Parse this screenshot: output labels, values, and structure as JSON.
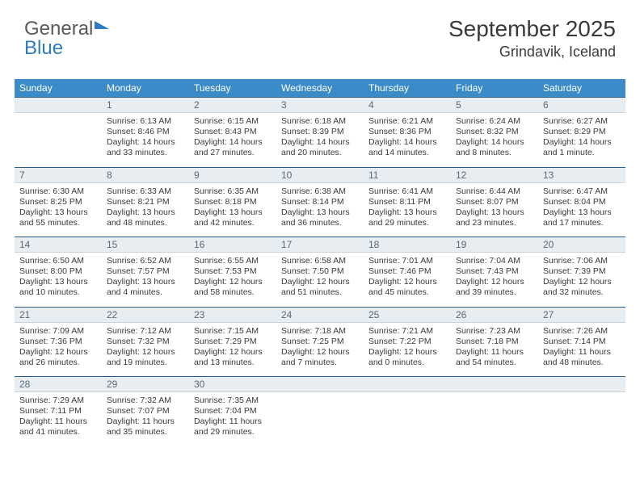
{
  "brand": {
    "part1": "General",
    "part2": "Blue"
  },
  "title": "September 2025",
  "location": "Grindavik, Iceland",
  "colors": {
    "header_bg": "#3b8bc8",
    "header_text": "#ffffff",
    "daynum_bg": "#e7edf1",
    "daynum_border_top": "#2b5f86",
    "body_text": "#3a3a3a",
    "page_bg": "#ffffff"
  },
  "dow": [
    "Sunday",
    "Monday",
    "Tuesday",
    "Wednesday",
    "Thursday",
    "Friday",
    "Saturday"
  ],
  "weeks": [
    [
      {
        "n": "",
        "l1": "",
        "l2": "",
        "l3": "",
        "l4": ""
      },
      {
        "n": "1",
        "l1": "Sunrise: 6:13 AM",
        "l2": "Sunset: 8:46 PM",
        "l3": "Daylight: 14 hours",
        "l4": "and 33 minutes."
      },
      {
        "n": "2",
        "l1": "Sunrise: 6:15 AM",
        "l2": "Sunset: 8:43 PM",
        "l3": "Daylight: 14 hours",
        "l4": "and 27 minutes."
      },
      {
        "n": "3",
        "l1": "Sunrise: 6:18 AM",
        "l2": "Sunset: 8:39 PM",
        "l3": "Daylight: 14 hours",
        "l4": "and 20 minutes."
      },
      {
        "n": "4",
        "l1": "Sunrise: 6:21 AM",
        "l2": "Sunset: 8:36 PM",
        "l3": "Daylight: 14 hours",
        "l4": "and 14 minutes."
      },
      {
        "n": "5",
        "l1": "Sunrise: 6:24 AM",
        "l2": "Sunset: 8:32 PM",
        "l3": "Daylight: 14 hours",
        "l4": "and 8 minutes."
      },
      {
        "n": "6",
        "l1": "Sunrise: 6:27 AM",
        "l2": "Sunset: 8:29 PM",
        "l3": "Daylight: 14 hours",
        "l4": "and 1 minute."
      }
    ],
    [
      {
        "n": "7",
        "l1": "Sunrise: 6:30 AM",
        "l2": "Sunset: 8:25 PM",
        "l3": "Daylight: 13 hours",
        "l4": "and 55 minutes."
      },
      {
        "n": "8",
        "l1": "Sunrise: 6:33 AM",
        "l2": "Sunset: 8:21 PM",
        "l3": "Daylight: 13 hours",
        "l4": "and 48 minutes."
      },
      {
        "n": "9",
        "l1": "Sunrise: 6:35 AM",
        "l2": "Sunset: 8:18 PM",
        "l3": "Daylight: 13 hours",
        "l4": "and 42 minutes."
      },
      {
        "n": "10",
        "l1": "Sunrise: 6:38 AM",
        "l2": "Sunset: 8:14 PM",
        "l3": "Daylight: 13 hours",
        "l4": "and 36 minutes."
      },
      {
        "n": "11",
        "l1": "Sunrise: 6:41 AM",
        "l2": "Sunset: 8:11 PM",
        "l3": "Daylight: 13 hours",
        "l4": "and 29 minutes."
      },
      {
        "n": "12",
        "l1": "Sunrise: 6:44 AM",
        "l2": "Sunset: 8:07 PM",
        "l3": "Daylight: 13 hours",
        "l4": "and 23 minutes."
      },
      {
        "n": "13",
        "l1": "Sunrise: 6:47 AM",
        "l2": "Sunset: 8:04 PM",
        "l3": "Daylight: 13 hours",
        "l4": "and 17 minutes."
      }
    ],
    [
      {
        "n": "14",
        "l1": "Sunrise: 6:50 AM",
        "l2": "Sunset: 8:00 PM",
        "l3": "Daylight: 13 hours",
        "l4": "and 10 minutes."
      },
      {
        "n": "15",
        "l1": "Sunrise: 6:52 AM",
        "l2": "Sunset: 7:57 PM",
        "l3": "Daylight: 13 hours",
        "l4": "and 4 minutes."
      },
      {
        "n": "16",
        "l1": "Sunrise: 6:55 AM",
        "l2": "Sunset: 7:53 PM",
        "l3": "Daylight: 12 hours",
        "l4": "and 58 minutes."
      },
      {
        "n": "17",
        "l1": "Sunrise: 6:58 AM",
        "l2": "Sunset: 7:50 PM",
        "l3": "Daylight: 12 hours",
        "l4": "and 51 minutes."
      },
      {
        "n": "18",
        "l1": "Sunrise: 7:01 AM",
        "l2": "Sunset: 7:46 PM",
        "l3": "Daylight: 12 hours",
        "l4": "and 45 minutes."
      },
      {
        "n": "19",
        "l1": "Sunrise: 7:04 AM",
        "l2": "Sunset: 7:43 PM",
        "l3": "Daylight: 12 hours",
        "l4": "and 39 minutes."
      },
      {
        "n": "20",
        "l1": "Sunrise: 7:06 AM",
        "l2": "Sunset: 7:39 PM",
        "l3": "Daylight: 12 hours",
        "l4": "and 32 minutes."
      }
    ],
    [
      {
        "n": "21",
        "l1": "Sunrise: 7:09 AM",
        "l2": "Sunset: 7:36 PM",
        "l3": "Daylight: 12 hours",
        "l4": "and 26 minutes."
      },
      {
        "n": "22",
        "l1": "Sunrise: 7:12 AM",
        "l2": "Sunset: 7:32 PM",
        "l3": "Daylight: 12 hours",
        "l4": "and 19 minutes."
      },
      {
        "n": "23",
        "l1": "Sunrise: 7:15 AM",
        "l2": "Sunset: 7:29 PM",
        "l3": "Daylight: 12 hours",
        "l4": "and 13 minutes."
      },
      {
        "n": "24",
        "l1": "Sunrise: 7:18 AM",
        "l2": "Sunset: 7:25 PM",
        "l3": "Daylight: 12 hours",
        "l4": "and 7 minutes."
      },
      {
        "n": "25",
        "l1": "Sunrise: 7:21 AM",
        "l2": "Sunset: 7:22 PM",
        "l3": "Daylight: 12 hours",
        "l4": "and 0 minutes."
      },
      {
        "n": "26",
        "l1": "Sunrise: 7:23 AM",
        "l2": "Sunset: 7:18 PM",
        "l3": "Daylight: 11 hours",
        "l4": "and 54 minutes."
      },
      {
        "n": "27",
        "l1": "Sunrise: 7:26 AM",
        "l2": "Sunset: 7:14 PM",
        "l3": "Daylight: 11 hours",
        "l4": "and 48 minutes."
      }
    ],
    [
      {
        "n": "28",
        "l1": "Sunrise: 7:29 AM",
        "l2": "Sunset: 7:11 PM",
        "l3": "Daylight: 11 hours",
        "l4": "and 41 minutes."
      },
      {
        "n": "29",
        "l1": "Sunrise: 7:32 AM",
        "l2": "Sunset: 7:07 PM",
        "l3": "Daylight: 11 hours",
        "l4": "and 35 minutes."
      },
      {
        "n": "30",
        "l1": "Sunrise: 7:35 AM",
        "l2": "Sunset: 7:04 PM",
        "l3": "Daylight: 11 hours",
        "l4": "and 29 minutes."
      },
      {
        "n": "",
        "l1": "",
        "l2": "",
        "l3": "",
        "l4": ""
      },
      {
        "n": "",
        "l1": "",
        "l2": "",
        "l3": "",
        "l4": ""
      },
      {
        "n": "",
        "l1": "",
        "l2": "",
        "l3": "",
        "l4": ""
      },
      {
        "n": "",
        "l1": "",
        "l2": "",
        "l3": "",
        "l4": ""
      }
    ]
  ]
}
